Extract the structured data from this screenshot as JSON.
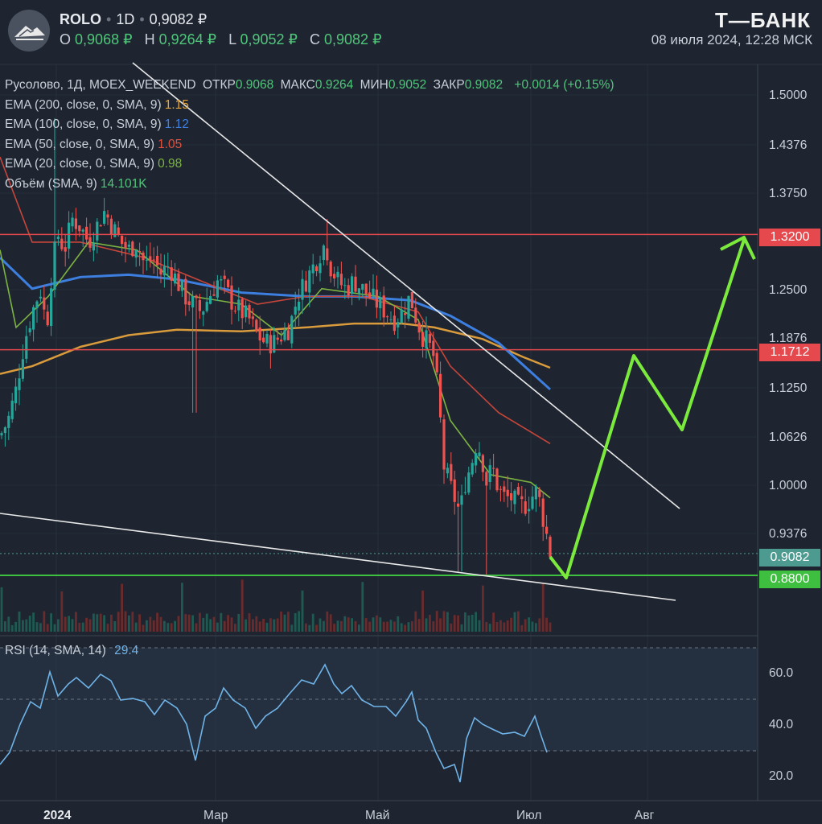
{
  "header": {
    "ticker": "ROLO",
    "timeframe": "1D",
    "last_price": "0,9082 ₽",
    "ohlc": [
      {
        "label": "O",
        "value": "0,9068 ₽"
      },
      {
        "label": "H",
        "value": "0,9264 ₽"
      },
      {
        "label": "L",
        "value": "0,9052 ₽"
      },
      {
        "label": "C",
        "value": "0,9082 ₽"
      }
    ],
    "brand": "Т—БАНК",
    "timestamp": "08 июля 2024, 12:28 МСК"
  },
  "legend": {
    "main": {
      "name": "Русолово, 1Д, MOEX_WEEKEND",
      "open_label": "ОТКР",
      "open": "0.9068",
      "high_label": "МАКС",
      "high": "0.9264",
      "low_label": "МИН",
      "low": "0.9052",
      "close_label": "ЗАКР",
      "close": "0.9082",
      "change": "+0.0014 (+0.15%)"
    },
    "indicators": [
      {
        "label": "EMA (200, close, 0, SMA, 9)",
        "value": "1.15",
        "color": "#e3a23a"
      },
      {
        "label": "EMA (100, close, 0, SMA, 9)",
        "value": "1.12",
        "color": "#3d7fe0"
      },
      {
        "label": "EMA (50, close, 0, SMA, 9)",
        "value": "1.05",
        "color": "#e0503f"
      },
      {
        "label": "EMA (20, close, 0, SMA, 9)",
        "value": "0.98",
        "color": "#7cb342"
      },
      {
        "label": "Объём (SMA, 9)",
        "value": "14.101K",
        "color": "#4fc67a"
      }
    ],
    "rsi": {
      "label": "RSI (14, SMA, 14)",
      "value": "29.4",
      "color": "#6fb3e8"
    }
  },
  "price_axis": [
    "1.5000",
    "1.4376",
    "1.3750",
    "1.2500",
    "1.1876",
    "1.1250",
    "1.0626",
    "1.0000",
    "0.9376"
  ],
  "price_badges": [
    {
      "value": "1.3200",
      "color": "#e5484d"
    },
    {
      "value": "1.1712",
      "color": "#e5484d"
    },
    {
      "value": "0.9082",
      "color": "#4c9a90"
    },
    {
      "value": "0.8800",
      "color": "#3fbf3f"
    }
  ],
  "rsi_axis": [
    "60.0",
    "40.0",
    "20.0"
  ],
  "time_axis": [
    "2024",
    "Мар",
    "Май",
    "Июл",
    "Авг"
  ],
  "colors": {
    "up": "#26a69a",
    "down": "#ef5350",
    "forecast": "#7bea3c"
  }
}
